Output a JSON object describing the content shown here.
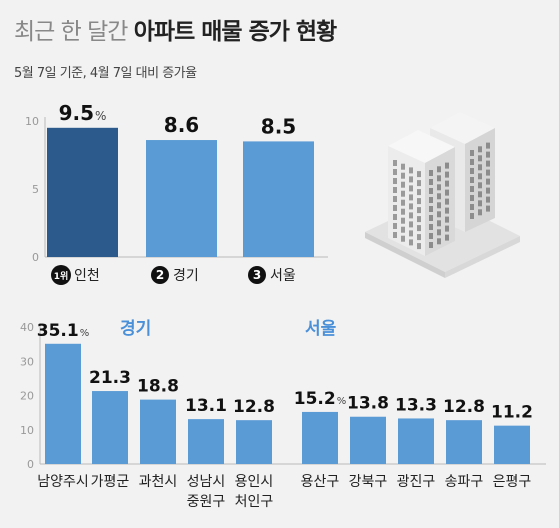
{
  "title_light": "최근 한 달간",
  "title_bold": "아파트 매물 증가 현황",
  "subtitle": "5월 7일 기준, 4월 7일 대비 증가율",
  "colors": {
    "highlight": "#2c5a8c",
    "bar": "#5b9bd5",
    "label": "#4a90d9"
  },
  "chart_data": [
    {
      "type": "bar",
      "categories": [
        "인천",
        "경기",
        "서울"
      ],
      "ranks": [
        "1위",
        "2",
        "3"
      ],
      "values": [
        9.5,
        8.6,
        8.5
      ],
      "value_labels": [
        "9.5",
        "8.6",
        "8.5"
      ],
      "unit": "%",
      "yticks": [
        0,
        5,
        10
      ],
      "ylim": [
        0,
        10
      ]
    },
    {
      "type": "bar",
      "label": "경기",
      "categories": [
        [
          "남양주시"
        ],
        [
          "가평군"
        ],
        [
          "과천시"
        ],
        [
          "성남시",
          "중원구"
        ],
        [
          "용인시",
          "처인구"
        ]
      ],
      "values": [
        35.1,
        21.3,
        18.8,
        13.1,
        12.8
      ],
      "value_labels": [
        "35.1",
        "21.3",
        "18.8",
        "13.1",
        "12.8"
      ],
      "unit": "%",
      "yticks": [
        0,
        10,
        20,
        30,
        40
      ],
      "ylim": [
        0,
        40
      ]
    },
    {
      "type": "bar",
      "label": "서울",
      "categories": [
        [
          "용산구"
        ],
        [
          "강북구"
        ],
        [
          "광진구"
        ],
        [
          "송파구"
        ],
        [
          "은평구"
        ]
      ],
      "values": [
        15.2,
        13.8,
        13.3,
        12.8,
        11.2
      ],
      "value_labels": [
        "15.2",
        "13.8",
        "13.3",
        "12.8",
        "11.2"
      ],
      "unit": "%",
      "ylim": [
        0,
        40
      ]
    }
  ]
}
